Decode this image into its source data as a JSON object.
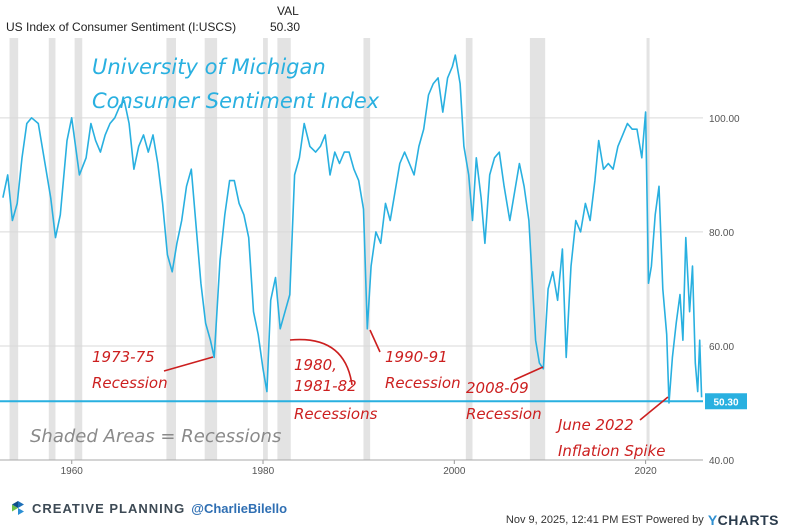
{
  "header": {
    "series_label": "US Index of Consumer Sentiment (I:USCS)",
    "val_label": "VAL",
    "val_value": "50.30"
  },
  "footer": {
    "brand": "CREATIVE PLANNING",
    "handle": "@CharlieBilello",
    "timestamp": "Nov 9, 2025, 12:41 PM EST Powered by",
    "ycharts_y": "Y",
    "ycharts_rest": "CHARTS"
  },
  "colors": {
    "line": "#29b0e0",
    "title": "#29b0e0",
    "annotation": "#cc1f1f",
    "recession": "#e3e3e3",
    "grid": "#d9d9d9",
    "gray_text": "#8a8a8a"
  },
  "chart_data": {
    "type": "line",
    "title": "University of Michigan Consumer Sentiment Index",
    "title_lines": [
      "University of Michigan",
      "Consumer Sentiment Index"
    ],
    "xlabel": "",
    "ylabel": "",
    "xlim": [
      1952.5,
      2026.0
    ],
    "ylim": [
      40,
      114
    ],
    "x_ticks": [
      1960,
      1980,
      2000,
      2020
    ],
    "y_ticks": [
      40,
      60,
      80,
      100
    ],
    "y_tick_labels": [
      "40.00",
      "60.00",
      "80.00",
      "100.00"
    ],
    "current_value": 50.3,
    "current_label": "50.30",
    "shaded_note": "Shaded Areas = Recessions",
    "recessions": [
      [
        1953.5,
        1954.4
      ],
      [
        1957.6,
        1958.3
      ],
      [
        1960.3,
        1961.1
      ],
      [
        1969.9,
        1970.9
      ],
      [
        1973.9,
        1975.2
      ],
      [
        1980.0,
        1980.5
      ],
      [
        1981.5,
        1982.9
      ],
      [
        1990.5,
        1991.2
      ],
      [
        2001.2,
        2001.9
      ],
      [
        2007.9,
        2009.5
      ],
      [
        2020.1,
        2020.4
      ]
    ],
    "series": [
      {
        "name": "US Index of Consumer Sentiment",
        "x": [
          1952.8,
          1953.3,
          1953.8,
          1954.3,
          1954.8,
          1955.3,
          1955.8,
          1956.5,
          1957.2,
          1957.8,
          1958.3,
          1958.8,
          1959.5,
          1960.0,
          1960.8,
          1961.5,
          1962.0,
          1962.5,
          1963.0,
          1963.5,
          1964.0,
          1964.5,
          1965.0,
          1965.5,
          1966.0,
          1966.5,
          1967.0,
          1967.5,
          1968.0,
          1968.5,
          1969.0,
          1969.5,
          1970.0,
          1970.5,
          1971.0,
          1971.5,
          1972.0,
          1972.5,
          1973.0,
          1973.5,
          1974.0,
          1974.5,
          1974.9,
          1975.5,
          1976.0,
          1976.5,
          1977.0,
          1977.5,
          1978.0,
          1978.5,
          1979.0,
          1979.5,
          1980.0,
          1980.4,
          1980.8,
          1981.3,
          1981.8,
          1982.3,
          1982.8,
          1983.3,
          1983.8,
          1984.3,
          1984.9,
          1985.5,
          1986.0,
          1986.5,
          1987.0,
          1987.5,
          1988.0,
          1988.5,
          1989.0,
          1989.5,
          1990.0,
          1990.5,
          1990.9,
          1991.3,
          1991.8,
          1992.3,
          1992.8,
          1993.3,
          1993.8,
          1994.3,
          1994.8,
          1995.3,
          1995.8,
          1996.3,
          1996.8,
          1997.3,
          1997.8,
          1998.3,
          1998.8,
          1999.3,
          1999.8,
          2000.1,
          2000.6,
          2001.0,
          2001.5,
          2001.9,
          2002.3,
          2002.8,
          2003.2,
          2003.7,
          2004.2,
          2004.7,
          2005.2,
          2005.8,
          2006.3,
          2006.8,
          2007.3,
          2007.8,
          2008.2,
          2008.5,
          2008.9,
          2009.3,
          2009.8,
          2010.3,
          2010.8,
          2011.3,
          2011.7,
          2012.2,
          2012.7,
          2013.2,
          2013.7,
          2014.2,
          2014.7,
          2015.1,
          2015.6,
          2016.1,
          2016.6,
          2017.1,
          2017.6,
          2018.1,
          2018.6,
          2019.1,
          2019.6,
          2020.0,
          2020.3,
          2020.6,
          2021.0,
          2021.4,
          2021.8,
          2022.2,
          2022.45,
          2022.8,
          2023.2,
          2023.6,
          2023.9,
          2024.2,
          2024.6,
          2024.9,
          2025.2,
          2025.45,
          2025.65,
          2025.85
        ],
        "values": [
          86.0,
          90.0,
          82.0,
          85.0,
          93.0,
          99.0,
          100.0,
          99.0,
          92.0,
          86.0,
          79.0,
          83.0,
          96.0,
          100.0,
          90.0,
          93.0,
          99.0,
          96.0,
          94.0,
          97.0,
          99.0,
          100.0,
          102.0,
          103.0,
          99.0,
          91.0,
          95.0,
          97.0,
          94.0,
          97.0,
          92.0,
          85.0,
          76.0,
          73.0,
          78.0,
          82.0,
          88.0,
          91.0,
          81.0,
          71.0,
          64.0,
          61.0,
          58.0,
          75.0,
          83.0,
          89.0,
          89.0,
          85.0,
          83.0,
          79.0,
          66.0,
          62.0,
          56.0,
          52.0,
          68.0,
          72.0,
          63.0,
          66.0,
          69.0,
          90.0,
          93.0,
          99.0,
          95.0,
          94.0,
          95.0,
          97.0,
          90.0,
          94.0,
          92.0,
          94.0,
          94.0,
          91.0,
          89.0,
          84.0,
          63.0,
          74.0,
          80.0,
          78.0,
          85.0,
          82.0,
          87.0,
          92.0,
          94.0,
          92.0,
          90.0,
          95.0,
          98.0,
          104.0,
          106.0,
          107.0,
          101.0,
          107.0,
          109.0,
          111.0,
          106.0,
          95.0,
          90.0,
          82.0,
          93.0,
          86.0,
          78.0,
          90.0,
          93.0,
          94.0,
          88.0,
          82.0,
          87.0,
          92.0,
          88.0,
          82.0,
          70.0,
          61.0,
          57.0,
          56.0,
          70.0,
          73.0,
          68.0,
          77.0,
          58.0,
          74.0,
          82.0,
          80.0,
          85.0,
          82.0,
          89.0,
          96.0,
          91.0,
          92.0,
          91.0,
          95.0,
          97.0,
          99.0,
          98.0,
          98.0,
          93.0,
          101.0,
          71.0,
          74.0,
          83.0,
          88.0,
          70.0,
          62.0,
          50.0,
          58.0,
          64.0,
          69.0,
          61.0,
          79.0,
          66.0,
          74.0,
          57.0,
          52.0,
          61.0,
          51.0
        ]
      }
    ],
    "annotations": [
      {
        "id": "r7375",
        "lines": [
          "1973-75",
          "Recession"
        ],
        "x": 1974.8,
        "y": 58.2
      },
      {
        "id": "r8082",
        "lines": [
          "1980,",
          "1981-82",
          "Recessions"
        ],
        "x": 1982.0,
        "y": 62.5
      },
      {
        "id": "r9091",
        "lines": [
          "1990-91",
          "Recession"
        ],
        "x": 1991.0,
        "y": 63.5
      },
      {
        "id": "r0809",
        "lines": [
          "2008-09",
          "Recession"
        ],
        "x": 2008.5,
        "y": 57.0
      },
      {
        "id": "inf22",
        "lines": [
          "June 2022",
          "Inflation Spike"
        ],
        "x": 2022.45,
        "y": 50.5
      }
    ]
  }
}
